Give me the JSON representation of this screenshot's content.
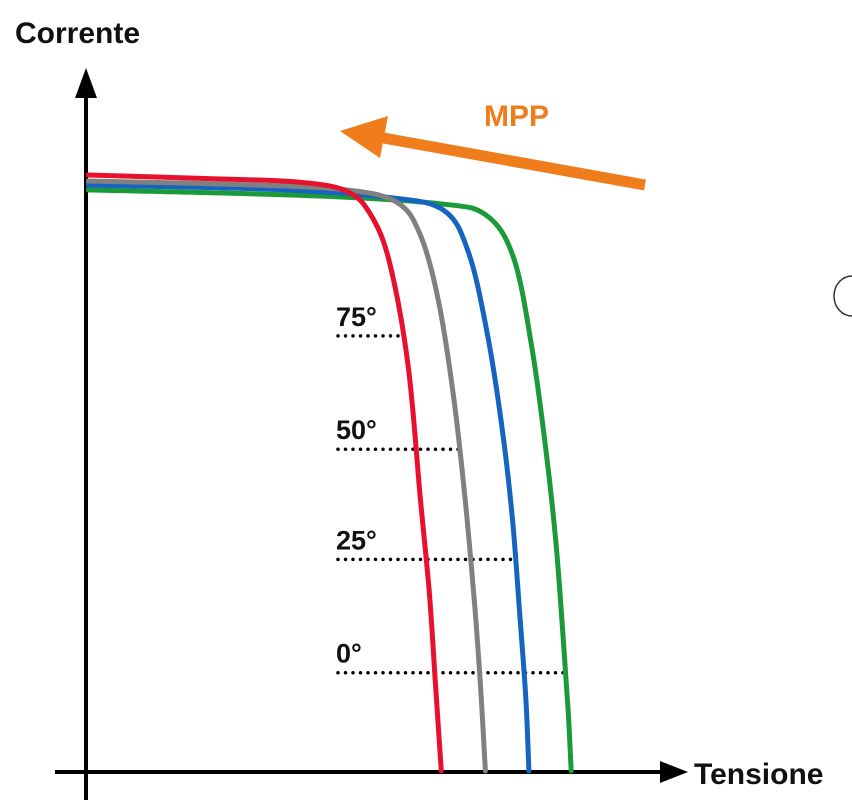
{
  "chart_data": {
    "type": "line",
    "ylabel": "Corrente",
    "xlabel": "Tensione",
    "xlim": [
      0,
      100
    ],
    "ylim": [
      0,
      100
    ],
    "annotation": {
      "text": "MPP",
      "color": "#F07D1B"
    },
    "series": [
      {
        "color": "#E8112D",
        "temp_label": "75°",
        "points": [
          [
            0,
            100
          ],
          [
            20,
            99.4
          ],
          [
            35,
            98.8
          ],
          [
            43,
            97.2
          ],
          [
            47,
            93
          ],
          [
            50,
            85
          ],
          [
            53,
            68
          ],
          [
            55,
            46
          ],
          [
            56.5,
            30
          ],
          [
            57.5,
            15
          ],
          [
            58.5,
            0
          ]
        ]
      },
      {
        "color": "#808080",
        "temp_label": "50°",
        "points": [
          [
            0,
            99
          ],
          [
            25,
            98.4
          ],
          [
            42,
            97.6
          ],
          [
            51,
            95.5
          ],
          [
            55,
            90
          ],
          [
            58,
            79
          ],
          [
            60.5,
            63
          ],
          [
            62.5,
            45
          ],
          [
            64,
            28
          ],
          [
            65,
            14
          ],
          [
            65.8,
            0
          ]
        ]
      },
      {
        "color": "#1565C0",
        "temp_label": "25°",
        "points": [
          [
            0,
            98.3
          ],
          [
            30,
            97.6
          ],
          [
            50,
            96.2
          ],
          [
            59,
            94
          ],
          [
            63,
            87
          ],
          [
            66,
            74
          ],
          [
            68.5,
            58
          ],
          [
            70.3,
            42
          ],
          [
            71.5,
            26
          ],
          [
            72.5,
            12
          ],
          [
            73,
            0
          ]
        ]
      },
      {
        "color": "#1B9A3A",
        "temp_label": "0°",
        "points": [
          [
            0,
            97.5
          ],
          [
            35,
            96.6
          ],
          [
            58,
            95.2
          ],
          [
            66,
            93.2
          ],
          [
            70.5,
            86
          ],
          [
            73.5,
            71
          ],
          [
            75.8,
            54
          ],
          [
            77.5,
            38
          ],
          [
            78.7,
            22
          ],
          [
            79.5,
            10
          ],
          [
            80,
            0
          ]
        ]
      }
    ],
    "temperature_markers": [
      {
        "label": "75°",
        "y": 73,
        "series": 0
      },
      {
        "label": "50°",
        "y": 54,
        "series": 1
      },
      {
        "label": "25°",
        "y": 35.5,
        "series": 2
      },
      {
        "label": "0°",
        "y": 16.5,
        "series": 3
      }
    ]
  }
}
